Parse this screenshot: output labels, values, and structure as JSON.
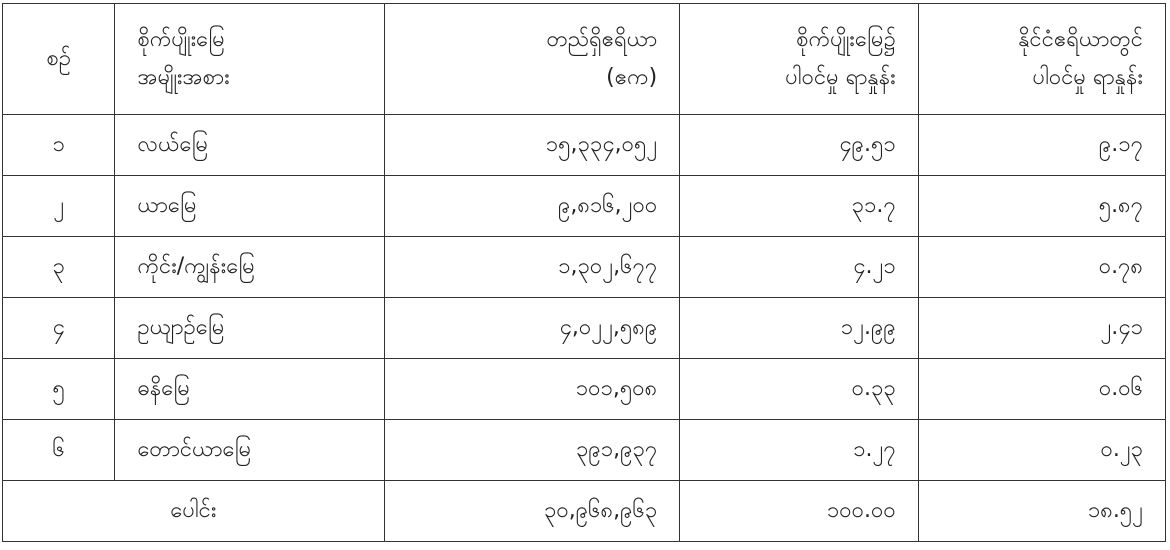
{
  "headers": [
    {
      "line1": "စဉ်",
      "line2": ""
    },
    {
      "line1": "စိုက်ပျိုးမြေ",
      "line2": "အမျိုးအစား"
    },
    {
      "line1": "တည်ရှိဧရိယာ",
      "line2": "(ဧက)"
    },
    {
      "line1": "စိုက်ပျိုးမြေ၌",
      "line2": "ပါဝင်မှု ရာနှုန်း"
    },
    {
      "line1": "နိုင်ငံဧရိယာတွင်",
      "line2": "ပါဝင်မှု ရာနှုန်း"
    }
  ],
  "rows": [
    {
      "no": "၁",
      "type": "လယ်မြေ",
      "area": "၁၅,၃၃၄,၀၅၂",
      "pct_agri": "၄၉.၅၁",
      "pct_country": "၉.၁၇"
    },
    {
      "no": "၂",
      "type": "ယာမြေ",
      "area": "၉,၈၁၆,၂၀၀",
      "pct_agri": "၃၁.၇",
      "pct_country": "၅.၈၇"
    },
    {
      "no": "၃",
      "type": "ကိုင်း/ကျွန်းမြေ",
      "area": "၁,၃၀၂,၆၇၇",
      "pct_agri": "၄.၂၁",
      "pct_country": "၀.၇၈"
    },
    {
      "no": "၄",
      "type": "ဥယျာဉ်မြေ",
      "area": "၄,၀၂၂,၅၈၉",
      "pct_agri": "၁၂.၉၉",
      "pct_country": "၂.၄၁"
    },
    {
      "no": "၅",
      "type": "ဓနိမြေ",
      "area": "၁၀၁,၅၀၈",
      "pct_agri": "၀.၃၃",
      "pct_country": "၀.၀၆"
    },
    {
      "no": "၆",
      "type": "တောင်ယာမြေ",
      "area": "၃၉၁,၉၃၇",
      "pct_agri": "၁.၂၇",
      "pct_country": "၀.၂၃"
    }
  ],
  "total": {
    "label": "ပေါင်း",
    "area": "၃၀,၉၆၈,၉၆၃",
    "pct_agri": "၁၀၀.၀၀",
    "pct_country": "၁၈.၅၂"
  }
}
